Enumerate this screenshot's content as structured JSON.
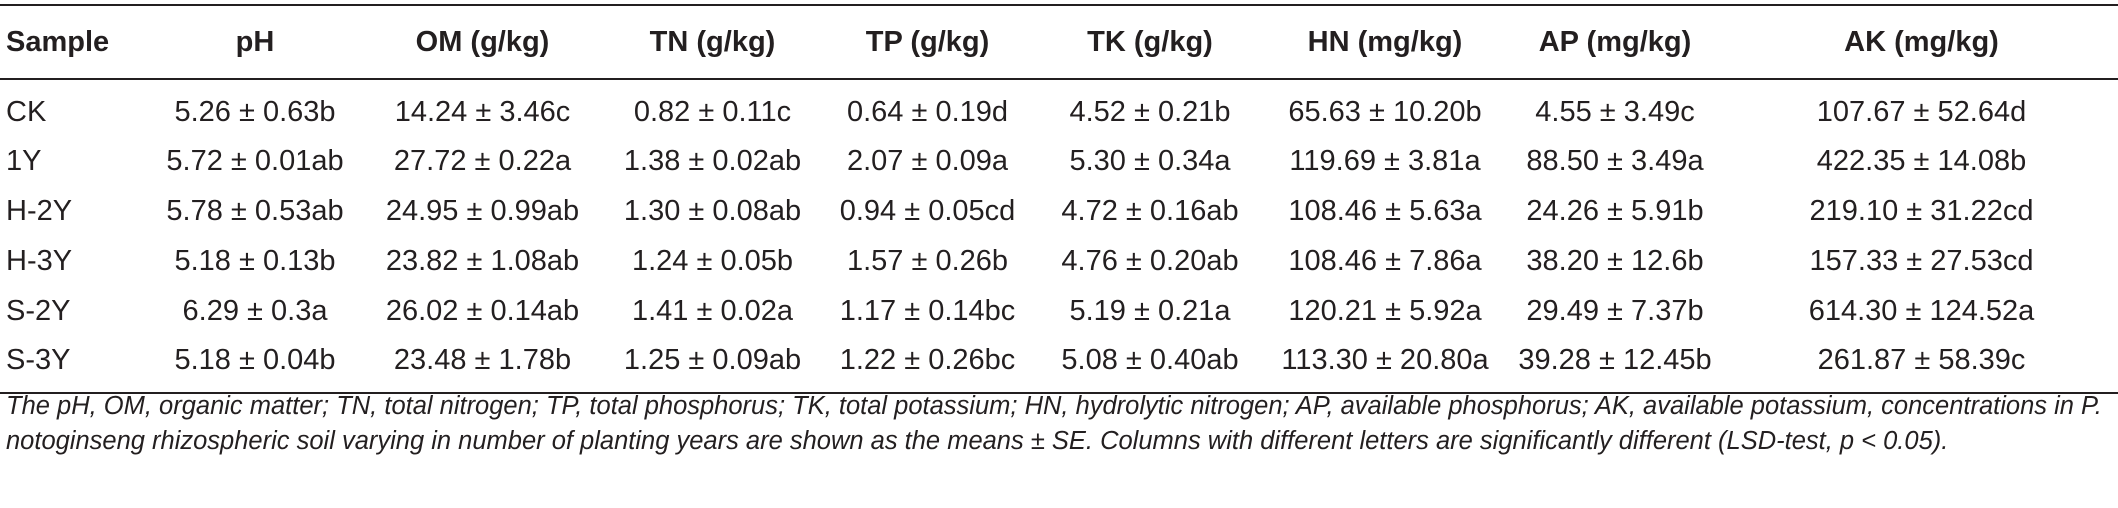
{
  "table": {
    "headers": [
      "Sample",
      "pH",
      "OM (g/kg)",
      "TN (g/kg)",
      "TP (g/kg)",
      "TK (g/kg)",
      "HN (mg/kg)",
      "AP (mg/kg)",
      "AK (mg/kg)"
    ],
    "rows": [
      [
        "CK",
        "5.26 ± 0.63b",
        "14.24 ± 3.46c",
        "0.82 ± 0.11c",
        "0.64 ±  0.19d",
        "4.52 ± 0.21b",
        "65.63 ± 10.20b",
        "4.55 ± 3.49c",
        "107.67 ± 52.64d"
      ],
      [
        "1Y",
        "5.72 ± 0.01ab",
        "27.72 ± 0.22a",
        "1.38 ± 0.02ab",
        "2.07 ± 0.09a",
        "5.30 ± 0.34a",
        "119.69 ± 3.81a",
        "88.50 ± 3.49a",
        "422.35 ± 14.08b"
      ],
      [
        "H-2Y",
        "5.78 ±  0.53ab",
        "24.95 ± 0.99ab",
        "1.30 ± 0.08ab",
        "0.94 ± 0.05cd",
        "4.72 ± 0.16ab",
        "108.46 ± 5.63a",
        "24.26 ± 5.91b",
        "219.10 ± 31.22cd"
      ],
      [
        "H-3Y",
        "5.18 ± 0.13b",
        "23.82 ± 1.08ab",
        "1.24 ± 0.05b",
        "1.57 ± 0.26b",
        "4.76 ± 0.20ab",
        "108.46 ± 7.86a",
        "38.20 ± 12.6b",
        "157.33 ± 27.53cd"
      ],
      [
        "S-2Y",
        "6.29 ±  0.3a",
        "26.02 ± 0.14ab",
        "1.41 ± 0.02a",
        "1.17 ± 0.14bc",
        "5.19 ± 0.21a",
        "120.21 ± 5.92a",
        "29.49 ± 7.37b",
        "614.30 ± 124.52a"
      ],
      [
        "S-3Y",
        "5.18 ± 0.04b",
        "23.48 ± 1.78b",
        "1.25 ±  0.09ab",
        "1.22 ± 0.26bc",
        "5.08 ± 0.40ab",
        "113.30 ± 20.80a",
        "39.28 ± 12.45b",
        "261.87 ± 58.39c"
      ]
    ]
  },
  "footnote": "The pH, OM, organic matter; TN, total nitrogen; TP, total phosphorus; TK, total potassium; HN, hydrolytic nitrogen; AP, available phosphorus; AK, available potassium, concentrations in P. notoginseng rhizospheric soil varying in number of planting years are shown as the means ± SE. Columns with different letters are significantly different (LSD-test, p < 0.05)."
}
